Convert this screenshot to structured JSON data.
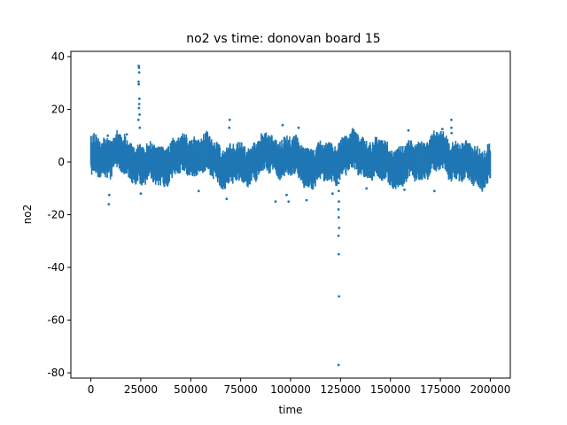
{
  "chart_data": {
    "type": "scatter",
    "title": "no2 vs time: donovan board 15",
    "xlabel": "time",
    "ylabel": "no2",
    "xlim": [
      -10000,
      210000
    ],
    "ylim": [
      -82,
      42
    ],
    "xticks": [
      0,
      25000,
      50000,
      75000,
      100000,
      125000,
      150000,
      175000,
      200000
    ],
    "yticks": [
      -80,
      -60,
      -40,
      -20,
      0,
      20,
      40
    ],
    "grid": false,
    "legend": "none",
    "marker_color": "#1f77b4",
    "x_range": [
      0,
      200000
    ],
    "baseline_band": [
      -4,
      6
    ],
    "excursions": [
      {
        "x": 24000,
        "y": 36.5
      },
      {
        "x": 24100,
        "y": 35.8
      },
      {
        "x": 24200,
        "y": 34.0
      },
      {
        "x": 23900,
        "y": 30.5
      },
      {
        "x": 24000,
        "y": 29.5
      },
      {
        "x": 24300,
        "y": 24.0
      },
      {
        "x": 24200,
        "y": 22.0
      },
      {
        "x": 24100,
        "y": 20.5
      },
      {
        "x": 24400,
        "y": 18.0
      },
      {
        "x": 23800,
        "y": 16.0
      },
      {
        "x": 24500,
        "y": 13.0
      },
      {
        "x": 8500,
        "y": 10.0
      },
      {
        "x": 18000,
        "y": 10.5
      },
      {
        "x": 69500,
        "y": 16.0
      },
      {
        "x": 69300,
        "y": 13.0
      },
      {
        "x": 96000,
        "y": 14.0
      },
      {
        "x": 104000,
        "y": 13.0
      },
      {
        "x": 159000,
        "y": 12.0
      },
      {
        "x": 176000,
        "y": 12.5
      },
      {
        "x": 180500,
        "y": 16.0
      },
      {
        "x": 180500,
        "y": 13.0
      },
      {
        "x": 180600,
        "y": 11.0
      },
      {
        "x": 9000,
        "y": -16.0
      },
      {
        "x": 9200,
        "y": -12.5
      },
      {
        "x": 25000,
        "y": -12.0
      },
      {
        "x": 54000,
        "y": -11.0
      },
      {
        "x": 68000,
        "y": -14.0
      },
      {
        "x": 92500,
        "y": -15.0
      },
      {
        "x": 98000,
        "y": -12.5
      },
      {
        "x": 99000,
        "y": -15.0
      },
      {
        "x": 108000,
        "y": -14.5
      },
      {
        "x": 121000,
        "y": -12.0
      },
      {
        "x": 124000,
        "y": -8.0
      },
      {
        "x": 124100,
        "y": -11.0
      },
      {
        "x": 124200,
        "y": -15.0
      },
      {
        "x": 124000,
        "y": -18.0
      },
      {
        "x": 124100,
        "y": -21.0
      },
      {
        "x": 124300,
        "y": -25.0
      },
      {
        "x": 124000,
        "y": -28.0
      },
      {
        "x": 124100,
        "y": -35.0
      },
      {
        "x": 124200,
        "y": -51.0
      },
      {
        "x": 124000,
        "y": -77.0
      },
      {
        "x": 138000,
        "y": -10.0
      },
      {
        "x": 157000,
        "y": -10.5
      },
      {
        "x": 172000,
        "y": -11.0
      }
    ]
  }
}
